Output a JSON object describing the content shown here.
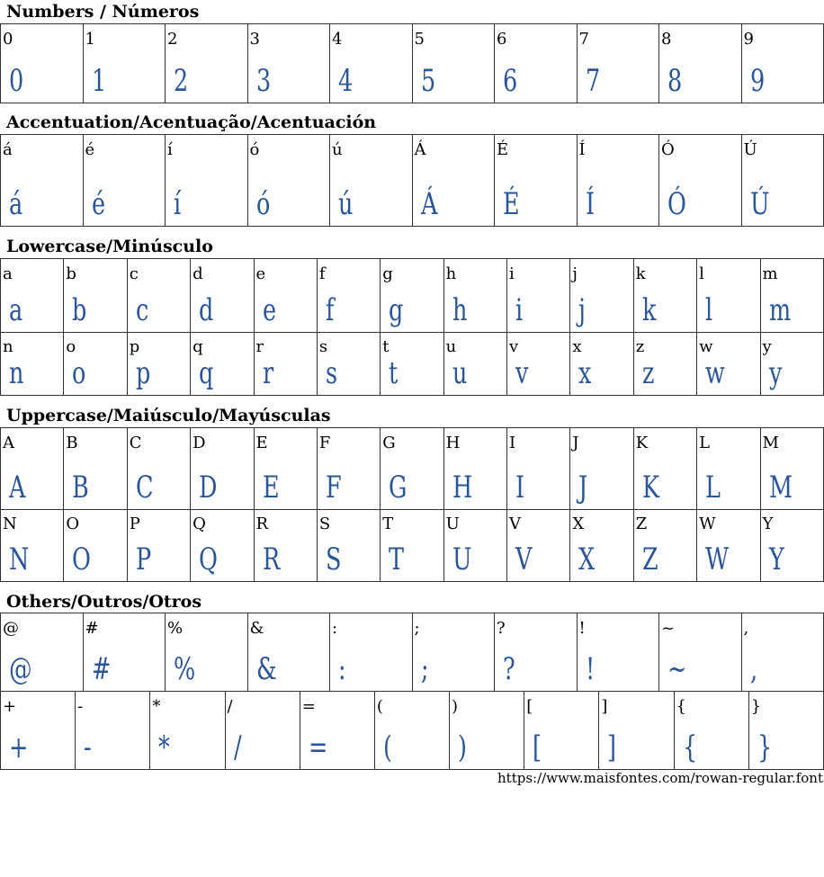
{
  "glyph_color": "#2a5599",
  "sections": [
    {
      "title": "Numbers / Números",
      "rows": [
        [
          "0",
          "1",
          "2",
          "3",
          "4",
          "5",
          "6",
          "7",
          "8",
          "9"
        ]
      ]
    },
    {
      "title": "Accentuation/Acentuação/Acentuación",
      "rows": [
        [
          "á",
          "é",
          "í",
          "ó",
          "ú",
          "Á",
          "É",
          "Í",
          "Ó",
          "Ú"
        ]
      ]
    },
    {
      "title": "Lowercase/Minúsculo",
      "rows": [
        [
          "a",
          "b",
          "c",
          "d",
          "e",
          "f",
          "g",
          "h",
          "i",
          "j",
          "k",
          "l",
          "m"
        ],
        [
          "n",
          "o",
          "p",
          "q",
          "r",
          "s",
          "t",
          "u",
          "v",
          "x",
          "z",
          "w",
          "y"
        ]
      ]
    },
    {
      "title": "Uppercase/Maiúsculo/Mayúsculas",
      "rows": [
        [
          "A",
          "B",
          "C",
          "D",
          "E",
          "F",
          "G",
          "H",
          "I",
          "J",
          "K",
          "L",
          "M"
        ],
        [
          "N",
          "O",
          "P",
          "Q",
          "R",
          "S",
          "T",
          "U",
          "V",
          "X",
          "Z",
          "W",
          "Y"
        ]
      ]
    },
    {
      "title": "Others/Outros/Otros",
      "rows": [
        [
          "@",
          "#",
          "%",
          "&",
          ":",
          ";",
          "?",
          "!",
          "~",
          ","
        ],
        [
          "+",
          "-",
          "*",
          "/",
          "=",
          "(",
          ")",
          "[",
          "]",
          "{",
          "}"
        ]
      ]
    }
  ],
  "footer_url": "https://www.maisfontes.com/rowan-regular.font"
}
